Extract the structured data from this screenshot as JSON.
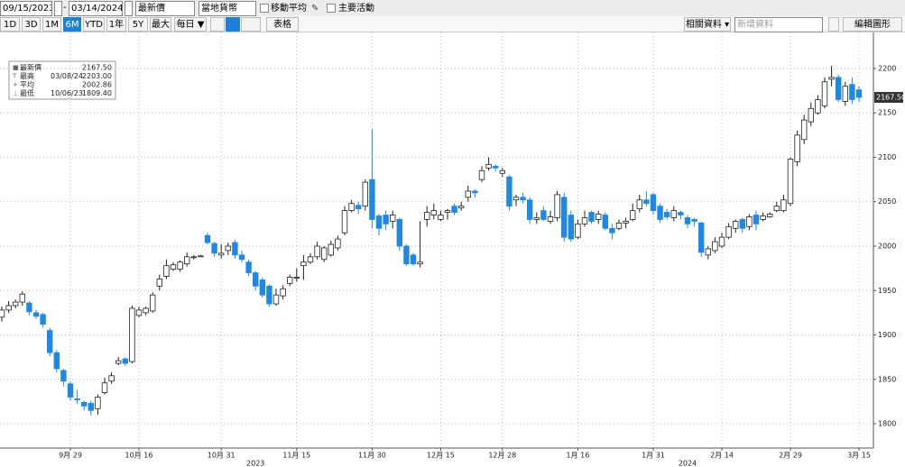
{
  "toolbar": {
    "start_date": "09/15/2023",
    "end_date": "03/14/2024",
    "price_field": "最新價",
    "currency": "當地貨幣",
    "options": [
      "移動平均",
      "主要活動"
    ],
    "periods": [
      "1D",
      "3D",
      "1M",
      "6M",
      "YTD",
      "1年",
      "5Y",
      "最大"
    ],
    "selected_period": "6M",
    "frequency": "每日 ▼",
    "table": "表格",
    "related": "相關資料 ▾",
    "add_data": "新增資料",
    "edit": "編輯圖形"
  },
  "chart_data": {
    "type": "candlestick",
    "categories": [
      null,
      null,
      null,
      null,
      null,
      null,
      null,
      null,
      null,
      null,
      "9月 29",
      null,
      null,
      null,
      null,
      null,
      null,
      null,
      null,
      null,
      "10月 16",
      null,
      null,
      null,
      null,
      null,
      null,
      null,
      null,
      null,
      null,
      null,
      "10月 31",
      null,
      null,
      null,
      null,
      null,
      null,
      null,
      null,
      null,
      null,
      "11月 15",
      null,
      null,
      null,
      null,
      null,
      null,
      null,
      null,
      null,
      null,
      "11月 30",
      null,
      null,
      null,
      null,
      null,
      null,
      null,
      null,
      null,
      "12月 15",
      null,
      null,
      null,
      null,
      null,
      null,
      null,
      null,
      "12月 28",
      null,
      null,
      null,
      null,
      null,
      null,
      null,
      null,
      null,
      null,
      "1月 16",
      null,
      null,
      null,
      null,
      null,
      null,
      null,
      null,
      null,
      null,
      "1月 31",
      null,
      null,
      null,
      null,
      null,
      null,
      null,
      null,
      null,
      "2月 14",
      null,
      null,
      null,
      null,
      null,
      null,
      null,
      null,
      null,
      "2月 29",
      null,
      null,
      null,
      null,
      null,
      null,
      null,
      null,
      null,
      "3月 15"
    ],
    "x_year_labels": [
      "2023",
      "2024"
    ],
    "open": [
      1920,
      1928,
      1933,
      1937,
      1936,
      1925,
      1923,
      1905,
      1880,
      1860,
      1845,
      1828,
      1824,
      1823,
      1817,
      1835,
      1848,
      1868,
      1873,
      1870,
      1922,
      1925,
      1927,
      1955,
      1966,
      1974,
      1974,
      1980,
      1987,
      1989,
      2012,
      2003,
      1990,
      1995,
      2004,
      1990,
      1982,
      1970,
      1962,
      1955,
      1935,
      1944,
      1958,
      1965,
      1978,
      1982,
      1988,
      1985,
      1990,
      1998,
      2015,
      2040,
      2046,
      2045,
      2075,
      2034,
      2035,
      2028,
      2030,
      2000,
      1990,
      1980,
      2030,
      2035,
      2030,
      2038,
      2045,
      2043,
      2055,
      2062,
      2075,
      2088,
      2090,
      2082,
      2078,
      2052,
      2055,
      2052,
      2030,
      2040,
      2028,
      2032,
      2055,
      2035,
      2010,
      2025,
      2038,
      2030,
      2035,
      2020,
      2020,
      2026,
      2030,
      2042,
      2052,
      2058,
      2045,
      2038,
      2032,
      2038,
      2032,
      2030,
      2026,
      1990,
      1995,
      2000,
      2010,
      2020,
      2030,
      2022,
      2035,
      2030,
      2033,
      2040,
      2040,
      2048,
      2095,
      2120,
      2140,
      2150,
      2158,
      2188,
      2190,
      2163,
      2182,
      2176
    ],
    "high": [
      1932,
      1938,
      1940,
      1949,
      1938,
      1928,
      1925,
      1908,
      1883,
      1862,
      1848,
      1838,
      1826,
      1826,
      1833,
      1852,
      1858,
      1875,
      1875,
      1933,
      1932,
      1932,
      1948,
      1968,
      1985,
      1982,
      1984,
      1993,
      1990,
      1990,
      2015,
      2005,
      2002,
      2004,
      2007,
      1995,
      1985,
      1972,
      1965,
      1957,
      1952,
      1956,
      1968,
      1975,
      1990,
      1992,
      2005,
      2000,
      2006,
      2012,
      2045,
      2052,
      2050,
      2075,
      2132,
      2036,
      2040,
      2040,
      2032,
      2002,
      1992,
      2028,
      2045,
      2048,
      2040,
      2042,
      2048,
      2050,
      2068,
      2064,
      2090,
      2100,
      2092,
      2088,
      2080,
      2058,
      2060,
      2055,
      2038,
      2045,
      2040,
      2062,
      2060,
      2040,
      2030,
      2040,
      2040,
      2040,
      2038,
      2025,
      2030,
      2032,
      2048,
      2058,
      2062,
      2060,
      2048,
      2042,
      2045,
      2040,
      2035,
      2032,
      2028,
      2000,
      2010,
      2015,
      2026,
      2030,
      2032,
      2036,
      2040,
      2038,
      2038,
      2050,
      2058,
      2100,
      2130,
      2148,
      2162,
      2170,
      2190,
      2203,
      2193,
      2185,
      2190,
      2180
    ],
    "low": [
      1915,
      1925,
      1930,
      1933,
      1922,
      1918,
      1908,
      1876,
      1858,
      1842,
      1826,
      1822,
      1815,
      1809.4,
      1810,
      1833,
      1845,
      1866,
      1865,
      1868,
      1920,
      1922,
      1925,
      1950,
      1963,
      1972,
      1971,
      1977,
      1985,
      1988,
      2002,
      1988,
      1986,
      1990,
      1986,
      1982,
      1966,
      1950,
      1942,
      1932,
      1933,
      1940,
      1955,
      1960,
      1962,
      1980,
      1985,
      1982,
      1988,
      1995,
      2012,
      2038,
      2036,
      2040,
      2020,
      2012,
      2018,
      2020,
      1995,
      1978,
      1978,
      1976,
      2022,
      2030,
      2028,
      2030,
      2035,
      2040,
      2050,
      2055,
      2072,
      2085,
      2084,
      2078,
      2040,
      2045,
      2048,
      2025,
      2025,
      2028,
      2025,
      2028,
      2005,
      2005,
      2008,
      2022,
      2025,
      2025,
      2018,
      2008,
      2018,
      2020,
      2028,
      2038,
      2045,
      2035,
      2026,
      2030,
      2028,
      2030,
      2020,
      2022,
      1988,
      1985,
      1992,
      1998,
      2008,
      2015,
      2015,
      2018,
      2018,
      2028,
      2032,
      2038,
      2038,
      2045,
      2090,
      2115,
      2135,
      2148,
      2155,
      2180,
      2162,
      2158,
      2160,
      2162
    ],
    "close": [
      1928,
      1933,
      1937,
      1946,
      1926,
      1921,
      1912,
      1880,
      1862,
      1848,
      1830,
      1827,
      1820,
      1815,
      1830,
      1846,
      1854,
      1871,
      1868,
      1930,
      1928,
      1930,
      1945,
      1963,
      1978,
      1979,
      1982,
      1988,
      1988,
      1989,
      2004,
      1992,
      1992,
      2000,
      1990,
      1985,
      1970,
      1955,
      1945,
      1935,
      1945,
      1952,
      1965,
      1965,
      1982,
      1988,
      2000,
      1998,
      2002,
      2008,
      2040,
      2048,
      2042,
      2072,
      2030,
      2020,
      2025,
      2035,
      2000,
      1980,
      1980,
      1982,
      2038,
      2040,
      2035,
      2040,
      2038,
      2045,
      2062,
      2060,
      2085,
      2092,
      2088,
      2085,
      2045,
      2055,
      2052,
      2030,
      2032,
      2030,
      2033,
      2058,
      2010,
      2008,
      2025,
      2032,
      2028,
      2036,
      2020,
      2015,
      2026,
      2028,
      2040,
      2052,
      2048,
      2040,
      2030,
      2033,
      2040,
      2035,
      2025,
      2028,
      1993,
      1997,
      2005,
      2010,
      2022,
      2028,
      2020,
      2033,
      2025,
      2034,
      2036,
      2045,
      2052,
      2098,
      2125,
      2142,
      2155,
      2165,
      2185,
      2190,
      2165,
      2180,
      2165,
      2167.5
    ],
    "up_color": "#ffffff",
    "down_color": "#1e88e5",
    "ylim": [
      1772.6,
      2240.6
    ],
    "yticks": [
      1800,
      1850,
      1900,
      1950,
      2000,
      2050,
      2100,
      2150,
      2200
    ],
    "grid": true,
    "legend": [
      {
        "label": "最新價",
        "value": "2167.50"
      },
      {
        "label": "最高",
        "date": "03/08/24",
        "value": "2203.00"
      },
      {
        "label": "平均",
        "value": "2002.86"
      },
      {
        "label": "最低",
        "date": "10/06/23",
        "value": "1809.40"
      }
    ]
  }
}
